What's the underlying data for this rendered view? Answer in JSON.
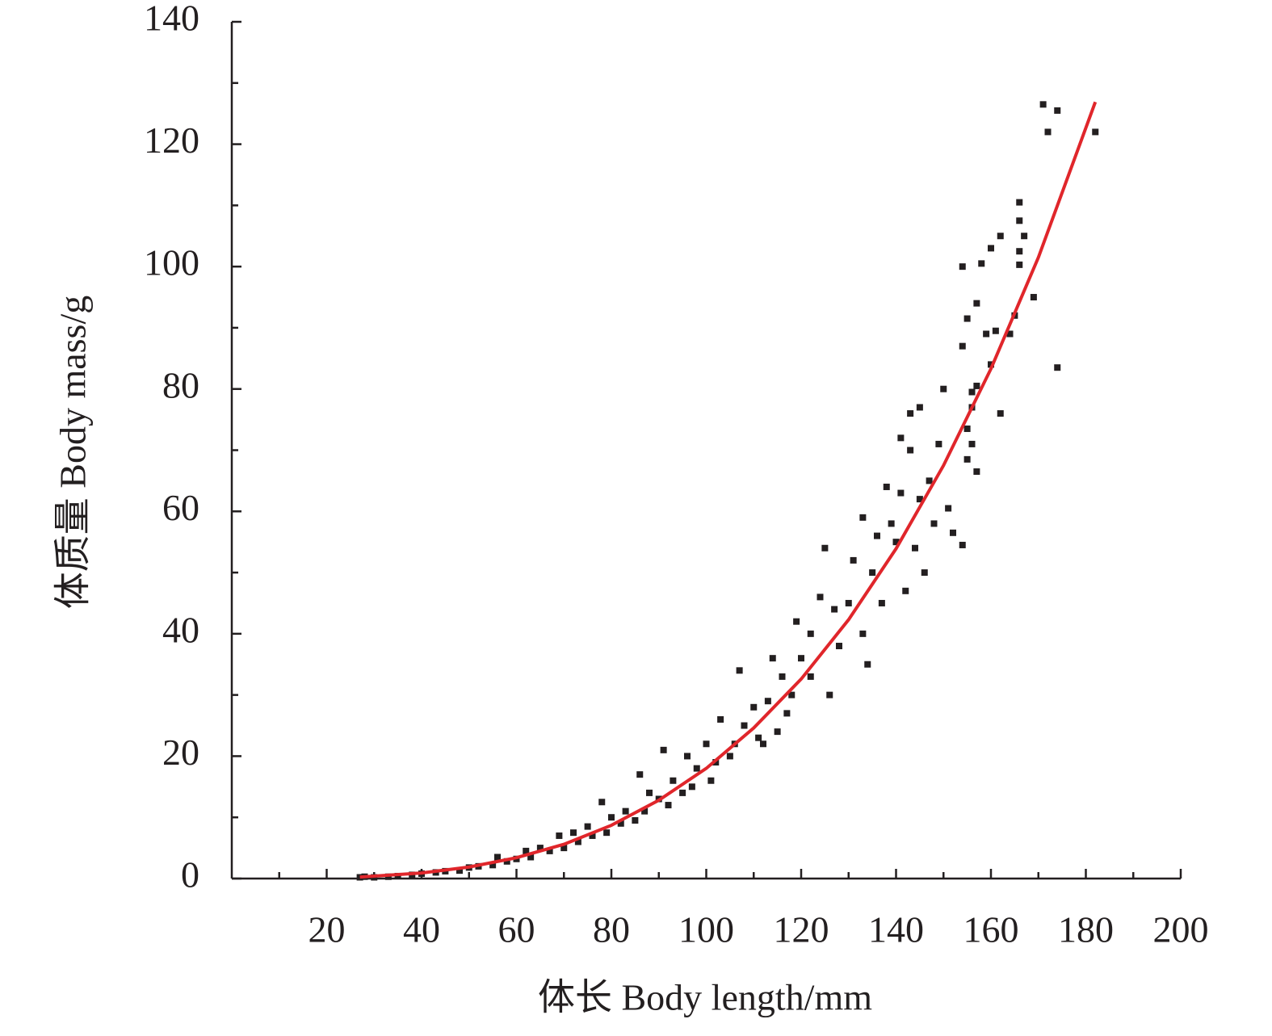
{
  "chart_data": {
    "type": "scatter",
    "xlabel": "体长 Body length/mm",
    "ylabel": "体质量 Body mass/g",
    "xlim": [
      0,
      200
    ],
    "ylim": [
      0,
      140
    ],
    "xticks": [
      20,
      40,
      60,
      80,
      100,
      120,
      140,
      160,
      180,
      200
    ],
    "yticks": [
      0,
      20,
      40,
      60,
      80,
      100,
      120,
      140
    ],
    "x_minor_ticks": [
      10,
      30,
      50,
      70,
      90,
      110,
      130,
      150,
      170,
      190
    ],
    "y_minor_ticks": [
      10,
      30,
      50,
      70,
      90,
      110,
      130
    ],
    "series": [
      {
        "type": "scatter",
        "color": "#231f20",
        "x": [
          171,
          172,
          174,
          182,
          174,
          166,
          166,
          167,
          162,
          160,
          158,
          154,
          166,
          166,
          169,
          165,
          155,
          157,
          159,
          161,
          164,
          154,
          160,
          156,
          157,
          162,
          156,
          150,
          145,
          143,
          155,
          156,
          157,
          155,
          154,
          152,
          151,
          148,
          145,
          147,
          149,
          141,
          143,
          141,
          139,
          138,
          136,
          140,
          142,
          146,
          144,
          133,
          135,
          137,
          131,
          130,
          133,
          134,
          127,
          128,
          126,
          124,
          125,
          122,
          122,
          120,
          118,
          119,
          117,
          116,
          114,
          115,
          113,
          112,
          110,
          111,
          108,
          106,
          107,
          105,
          103,
          102,
          100,
          101,
          98,
          97,
          96,
          95,
          93,
          92,
          91,
          90,
          88,
          87,
          86,
          85,
          83,
          82,
          80,
          79,
          78,
          76,
          75,
          73,
          72,
          70,
          69,
          67,
          65,
          63,
          62,
          60,
          58,
          56,
          55,
          52,
          50,
          48,
          45,
          43,
          40,
          38,
          35,
          33,
          30,
          28,
          27
        ],
        "values": [
          126.5,
          122,
          125.5,
          122,
          83.5,
          110.5,
          107.5,
          105,
          105,
          103,
          100.5,
          100,
          102.5,
          100.3,
          95,
          92,
          91.5,
          94,
          89,
          89.5,
          89,
          87,
          84,
          79.5,
          80.5,
          76,
          77,
          80,
          77,
          76,
          73.5,
          71,
          66.5,
          68.5,
          54.5,
          56.5,
          60.5,
          58,
          62,
          65,
          71,
          63,
          70,
          72,
          58,
          64,
          56,
          55,
          47,
          50,
          54,
          59,
          50,
          45,
          52,
          45,
          40,
          35,
          44,
          38,
          30,
          46,
          54,
          40,
          33,
          36,
          30,
          42,
          27,
          33,
          36,
          24,
          29,
          22,
          28,
          23,
          25,
          22,
          34,
          20,
          26,
          19,
          22,
          16,
          18,
          15,
          20,
          14,
          16,
          12,
          21,
          13,
          14,
          11,
          17,
          9.5,
          11,
          9,
          10,
          7.5,
          12.5,
          7,
          8.5,
          6,
          7.5,
          5,
          7,
          4.5,
          5,
          3.5,
          4.5,
          3.2,
          2.8,
          3.5,
          2.2,
          2,
          1.8,
          1.3,
          1.2,
          1,
          0.8,
          0.6,
          0.4,
          0.3,
          0.2,
          0.3,
          0.2
        ]
      },
      {
        "type": "line",
        "color": "#e0262b",
        "x": [
          27,
          40,
          50,
          60,
          70,
          80,
          90,
          100,
          110,
          120,
          130,
          140,
          150,
          160,
          170,
          182
        ],
        "values": [
          0.25,
          0.91,
          1.88,
          3.4,
          5.6,
          8.7,
          12.8,
          18,
          24.6,
          32.6,
          42.3,
          53.9,
          67.5,
          83.3,
          101.5,
          126.9
        ]
      }
    ]
  }
}
